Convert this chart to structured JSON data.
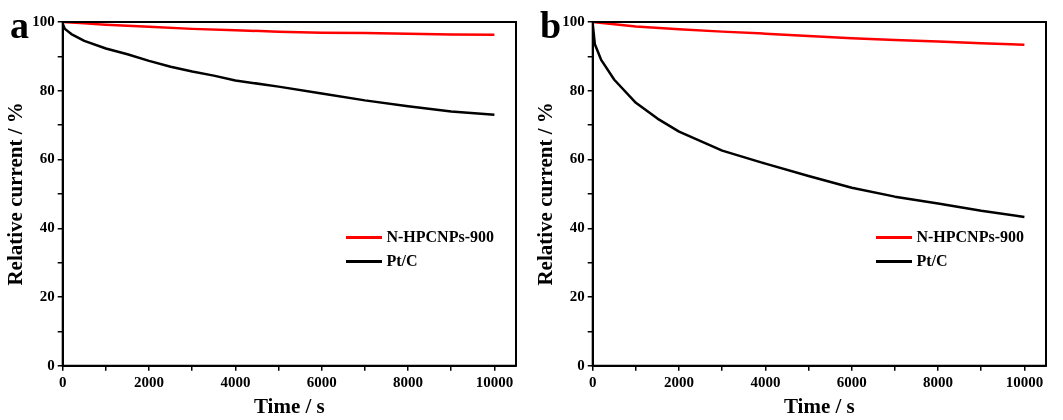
{
  "chart_data": [
    {
      "type": "line",
      "title": "a",
      "xlabel": "Time / s",
      "ylabel": "Relative current / %",
      "xlim": [
        0,
        10500
      ],
      "ylim": [
        0,
        100
      ],
      "xticks": [
        0,
        {
          "value": 1000,
          "label": null
        },
        2000,
        {
          "value": 3000,
          "label": null
        },
        4000,
        {
          "value": 5000,
          "label": null
        },
        6000,
        {
          "value": 7000,
          "label": null
        },
        8000,
        {
          "value": 9000,
          "label": null
        },
        10000
      ],
      "yticks": [
        0,
        {
          "value": 10,
          "label": null
        },
        20,
        {
          "value": 30,
          "label": null
        },
        40,
        {
          "value": 50,
          "label": null
        },
        60,
        {
          "value": 70,
          "label": null
        },
        80,
        {
          "value": 90,
          "label": null
        },
        100
      ],
      "grid": false,
      "legend": "right",
      "marker": "none",
      "line_style": "solid",
      "series": [
        {
          "name": "N-HPCNPs-900",
          "color": "#ff0000",
          "x": [
            0,
            500,
            1000,
            2000,
            3000,
            4000,
            5000,
            6000,
            7000,
            8000,
            9000,
            10000
          ],
          "values": [
            100,
            99.6,
            99.2,
            98.6,
            98,
            97.6,
            97.2,
            96.9,
            96.8,
            96.6,
            96.4,
            96.3
          ]
        },
        {
          "name": "Pt/C",
          "color": "#000000",
          "x": [
            0,
            50,
            200,
            500,
            1000,
            1500,
            2000,
            2500,
            3000,
            3500,
            4000,
            5000,
            6000,
            7000,
            8000,
            9000,
            10000
          ],
          "values": [
            99.5,
            98,
            96.5,
            94.5,
            92.3,
            90.6,
            88.7,
            87,
            85.6,
            84.4,
            83,
            81.2,
            79.2,
            77.2,
            75.5,
            74,
            73
          ]
        }
      ]
    },
    {
      "type": "line",
      "title": "b",
      "xlabel": "Time / s",
      "ylabel": "Relative current / %",
      "xlim": [
        0,
        10500
      ],
      "ylim": [
        0,
        100
      ],
      "xticks": [
        0,
        {
          "value": 1000,
          "label": null
        },
        2000,
        {
          "value": 3000,
          "label": null
        },
        4000,
        {
          "value": 5000,
          "label": null
        },
        6000,
        {
          "value": 7000,
          "label": null
        },
        8000,
        {
          "value": 9000,
          "label": null
        },
        10000
      ],
      "yticks": [
        0,
        {
          "value": 10,
          "label": null
        },
        20,
        {
          "value": 30,
          "label": null
        },
        40,
        {
          "value": 50,
          "label": null
        },
        60,
        {
          "value": 70,
          "label": null
        },
        80,
        {
          "value": 90,
          "label": null
        },
        100
      ],
      "grid": false,
      "legend": "right",
      "marker": "none",
      "line_style": "solid",
      "series": [
        {
          "name": "N-HPCNPs-900",
          "color": "#ff0000",
          "x": [
            0,
            1000,
            2000,
            3000,
            4000,
            5000,
            6000,
            7000,
            8000,
            9000,
            10000
          ],
          "values": [
            100,
            98.7,
            97.9,
            97.2,
            96.6,
            95.9,
            95.3,
            94.8,
            94.3,
            93.8,
            93.4
          ]
        },
        {
          "name": "Pt/C",
          "color": "#000000",
          "x": [
            0,
            50,
            200,
            500,
            1000,
            1500,
            2000,
            3000,
            4000,
            5000,
            6000,
            7000,
            8000,
            9000,
            10000
          ],
          "values": [
            99.5,
            93.5,
            88.9,
            83.2,
            76.5,
            71.9,
            68.1,
            62.6,
            58.8,
            55.2,
            51.8,
            49.2,
            47.2,
            45.1,
            43.3
          ]
        }
      ]
    }
  ]
}
